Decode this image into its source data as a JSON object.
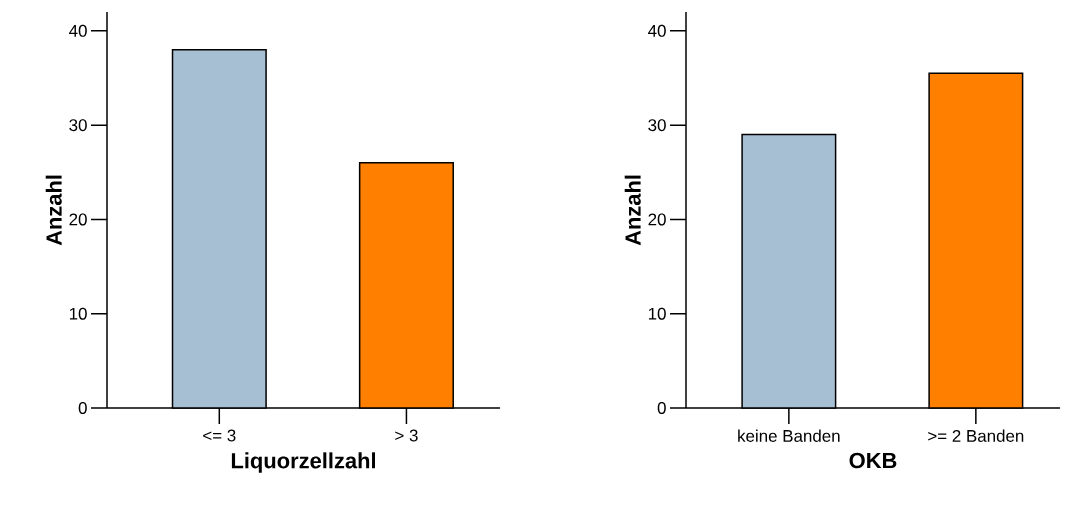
{
  "chart_data": [
    {
      "type": "bar",
      "categories": [
        "<= 3",
        "> 3"
      ],
      "values": [
        38,
        26
      ],
      "colors": [
        "#a7bfd3",
        "#ff7f00"
      ],
      "xlabel": "Liquorzellzahl",
      "ylabel": "Anzahl",
      "ylim": [
        0,
        42
      ],
      "yticks": [
        0,
        10,
        20,
        30,
        40
      ]
    },
    {
      "type": "bar",
      "categories": [
        "keine Banden",
        ">= 2 Banden"
      ],
      "values": [
        29,
        35.5
      ],
      "colors": [
        "#a7bfd3",
        "#ff7f00"
      ],
      "xlabel": "OKB",
      "ylabel": "Anzahl",
      "ylim": [
        0,
        42
      ],
      "yticks": [
        0,
        10,
        20,
        30,
        40
      ]
    }
  ]
}
